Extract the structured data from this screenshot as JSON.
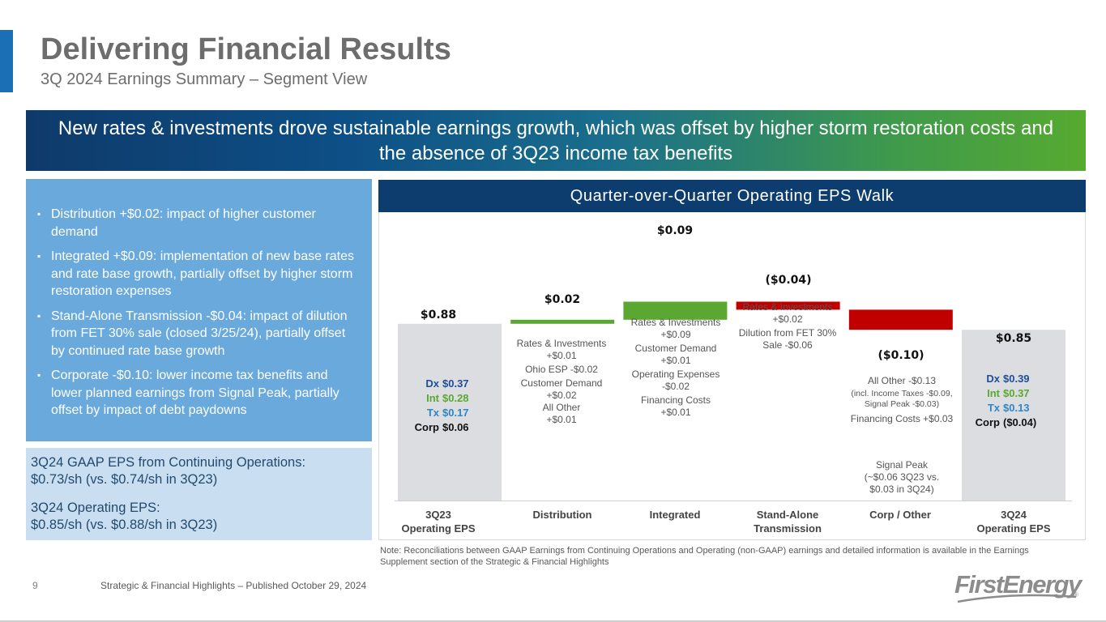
{
  "header": {
    "title": "Delivering Financial Results",
    "subtitle": "3Q 2024 Earnings Summary – Segment View",
    "accent_color": "#1a6fb5"
  },
  "banner": {
    "text": "New rates & investments drove sustainable earnings growth, which was offset by higher storm restoration costs and the absence of 3Q23 income tax benefits"
  },
  "bullets": [
    "Distribution +$0.02: impact of higher customer demand",
    "Integrated +$0.09: implementation of new base rates and rate base growth, partially offset by higher storm restoration expenses",
    "Stand-Alone Transmission -$0.04: impact of dilution from FET 30% sale (closed 3/25/24), partially offset by continued rate base growth",
    "Corporate -$0.10: lower income tax benefits and lower planned earnings from Signal Peak, partially offset by impact of debt paydowns"
  ],
  "eps_summary": {
    "gaap_line1": "3Q24 GAAP EPS from Continuing Operations:",
    "gaap_line2": "$0.73/sh (vs. $0.74/sh in 3Q23)",
    "op_line1": "3Q24 Operating EPS:",
    "op_line2": "$0.85/sh (vs. $0.88/sh in 3Q23)"
  },
  "chart_data": {
    "type": "bar",
    "subtype": "waterfall",
    "title": "Quarter-over-Quarter Operating EPS Walk",
    "categories": [
      "3Q23 Operating EPS",
      "Distribution",
      "Integrated",
      "Stand-Alone Transmission",
      "Corp / Other",
      "3Q24 Operating EPS"
    ],
    "tick_labels": [
      [
        "3Q23",
        "Operating EPS"
      ],
      [
        "Distribution"
      ],
      [
        "Integrated"
      ],
      [
        "Stand-Alone",
        "Transmission"
      ],
      [
        "Corp / Other"
      ],
      [
        "3Q24",
        "Operating EPS"
      ]
    ],
    "values": [
      0.88,
      0.02,
      0.09,
      -0.04,
      -0.1,
      0.85
    ],
    "kinds": [
      "total",
      "delta",
      "delta",
      "delta",
      "delta",
      "total"
    ],
    "data_labels": [
      "$0.88",
      "$0.02",
      "$0.09",
      "($0.04)",
      "($0.10)",
      "$0.85"
    ],
    "colors": {
      "total": "#dcdde1",
      "increase": "#5aa832",
      "decrease": "#c00000"
    },
    "start_segments": {
      "rows": [
        {
          "name": "Dx",
          "value": "$0.37",
          "color": "#1f4e96"
        },
        {
          "name": "Int",
          "value": "$0.28",
          "color": "#5aa832"
        },
        {
          "name": "Tx",
          "value": "$0.17",
          "color": "#2e86c8"
        },
        {
          "name": "Corp",
          "value": "$0.06",
          "color": "#111111"
        }
      ]
    },
    "end_segments": {
      "rows": [
        {
          "name": "Dx",
          "value": "$0.39",
          "color": "#1f4e96"
        },
        {
          "name": "Int",
          "value": "$0.37",
          "color": "#5aa832"
        },
        {
          "name": "Tx",
          "value": "$0.13",
          "color": "#2e86c8"
        },
        {
          "name": "Corp",
          "value": "($0.04)",
          "color": "#111111"
        }
      ]
    },
    "annotations": {
      "distribution": [
        "Rates & Investments",
        "+$0.01",
        "Ohio ESP -$0.02",
        "Customer Demand",
        "+$0.02",
        "All Other",
        "+$0.01"
      ],
      "integrated": [
        "Rates & Investments",
        "+$0.09",
        "Customer Demand",
        "+$0.01",
        "Operating Expenses",
        "-$0.02",
        "Financing Costs",
        "+$0.01"
      ],
      "transmission": [
        "Rates & Investments",
        "+$0.02",
        "Dilution from FET 30%",
        "Sale -$0.06"
      ],
      "corp": {
        "all_other": "All Other -$0.13",
        "detail": "(incl. Income Taxes -$0.09,",
        "detail2": "Signal Peak -$0.03)",
        "financing": "Financing Costs +$0.03",
        "signal_peak": [
          "Signal Peak",
          "(~$0.06 3Q23 vs.",
          "$0.03 in 3Q24)"
        ]
      }
    }
  },
  "note": "Note: Reconciliations between GAAP Earnings from Continuing Operations and Operating (non-GAAP) earnings and detailed information is available in the Earnings Supplement section of the Strategic & Financial Highlights",
  "footer": {
    "page_number": "9",
    "text": "Strategic & Financial Highlights – Published October 29, 2024",
    "logo_text": "FirstEnergy",
    "logo_reg": "®"
  }
}
